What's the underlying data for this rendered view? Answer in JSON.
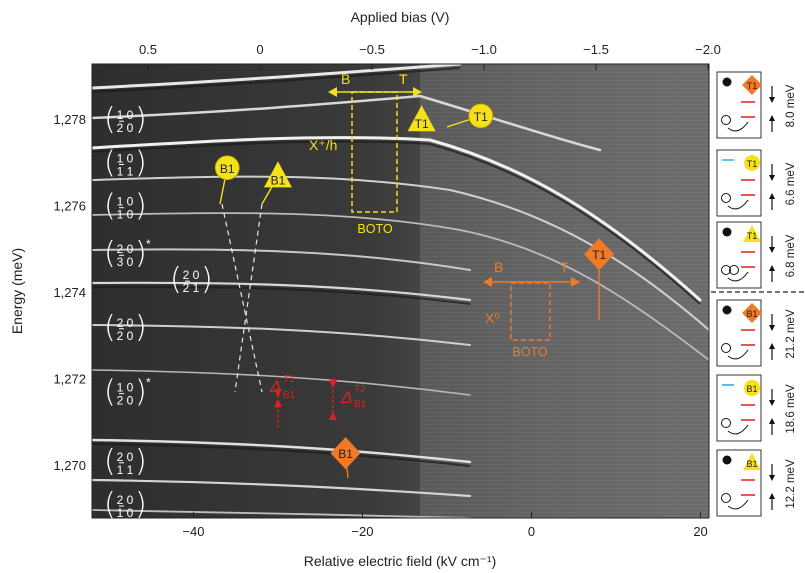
{
  "chart_data": {
    "type": "heatmap",
    "title": "",
    "xlabel": "Relative electric field (kV cm⁻¹)",
    "x2label": "Applied bias (V)",
    "ylabel": "Energy (meV)",
    "xlim": [
      -52,
      21
    ],
    "ylim": [
      1268.8,
      1279.3
    ],
    "x_ticks": [
      -40,
      -20,
      0,
      20
    ],
    "x_tick_labels": [
      "−40",
      "−20",
      "0",
      "20"
    ],
    "x2_ticks": [
      0.5,
      0,
      -0.5,
      -1.0,
      -1.5,
      -2.0
    ],
    "x2_tick_labels": [
      "0.5",
      "0",
      "−0.5",
      "−1.0",
      "−1.5",
      "−2.0"
    ],
    "y_ticks": [
      1270,
      1272,
      1274,
      1276,
      1278
    ],
    "y_tick_labels": [
      "1,270",
      "1,272",
      "1,274",
      "1,276",
      "1,278"
    ],
    "state_labels": [
      {
        "top": "1 0",
        "bottom": "2 0",
        "star": false,
        "y": 1278.0
      },
      {
        "top": "1 0",
        "bottom": "1 1",
        "star": false,
        "y": 1277.0
      },
      {
        "top": "1 0",
        "bottom": "1 0",
        "star": false,
        "y": 1276.0
      },
      {
        "top": "2 0",
        "bottom": "3 0",
        "star": true,
        "y": 1274.9
      },
      {
        "top": "2 0",
        "bottom": "2 1",
        "star": false,
        "y": 1274.3
      },
      {
        "top": "2 0",
        "bottom": "2 0",
        "star": false,
        "y": 1273.2
      },
      {
        "top": "1 0",
        "bottom": "2 0",
        "star": true,
        "y": 1271.7
      },
      {
        "top": "2 0",
        "bottom": "1 1",
        "star": false,
        "y": 1270.1
      },
      {
        "top": "2 0",
        "bottom": "1 0",
        "star": false,
        "y": 1269.1
      }
    ],
    "markers": [
      {
        "label": "B1",
        "shape": "circle",
        "color": "#f5e11a",
        "x": -36,
        "y": 1276.9
      },
      {
        "label": "B1",
        "shape": "triangle",
        "color": "#f5e11a",
        "x": -30,
        "y": 1276.7
      },
      {
        "label": "T1",
        "shape": "triangle",
        "color": "#f5e11a",
        "x": -13,
        "y": 1278.0
      },
      {
        "label": "T1",
        "shape": "circle",
        "color": "#f5e11a",
        "x": -6,
        "y": 1278.1
      },
      {
        "label": "T1",
        "shape": "diamond",
        "color": "#f07a26",
        "x": 8,
        "y": 1274.9
      },
      {
        "label": "B1",
        "shape": "diamond",
        "color": "#f07a26",
        "x": -22,
        "y": 1270.3
      }
    ],
    "annotations": {
      "b_top": "B",
      "t_top": "T",
      "x_plus": "X⁺/h",
      "boto_top": "BOTO",
      "b_mid": "B",
      "t_mid": "T",
      "x_zero": "X⁰",
      "boto_mid": "BOTO",
      "delta_t1_main": "Δ",
      "delta_t1_sup": "T1",
      "delta_t1_sub": "B1",
      "delta_t2_main": "Δ",
      "delta_t2_sup": "T2",
      "delta_t2_sub": "B1"
    },
    "side_panels": [
      {
        "energy": "8.0 meV",
        "marker": "diamond",
        "label": "T1",
        "color": "#f07a26",
        "dot": true
      },
      {
        "energy": "6.6 meV",
        "marker": "circle",
        "label": "T1",
        "color": "#f5e11a",
        "dot": false
      },
      {
        "energy": "6.8 meV",
        "marker": "triangle",
        "label": "T1",
        "color": "#f5e11a",
        "dot": true
      },
      {
        "energy": "21.2 meV",
        "marker": "diamond",
        "label": "B1",
        "color": "#f07a26",
        "dot": true
      },
      {
        "energy": "18.6 meV",
        "marker": "circle",
        "label": "B1",
        "color": "#f5e11a",
        "dot": false
      },
      {
        "energy": "12.2 meV",
        "marker": "triangle",
        "label": "B1",
        "color": "#f5e11a",
        "dot": true
      }
    ]
  }
}
